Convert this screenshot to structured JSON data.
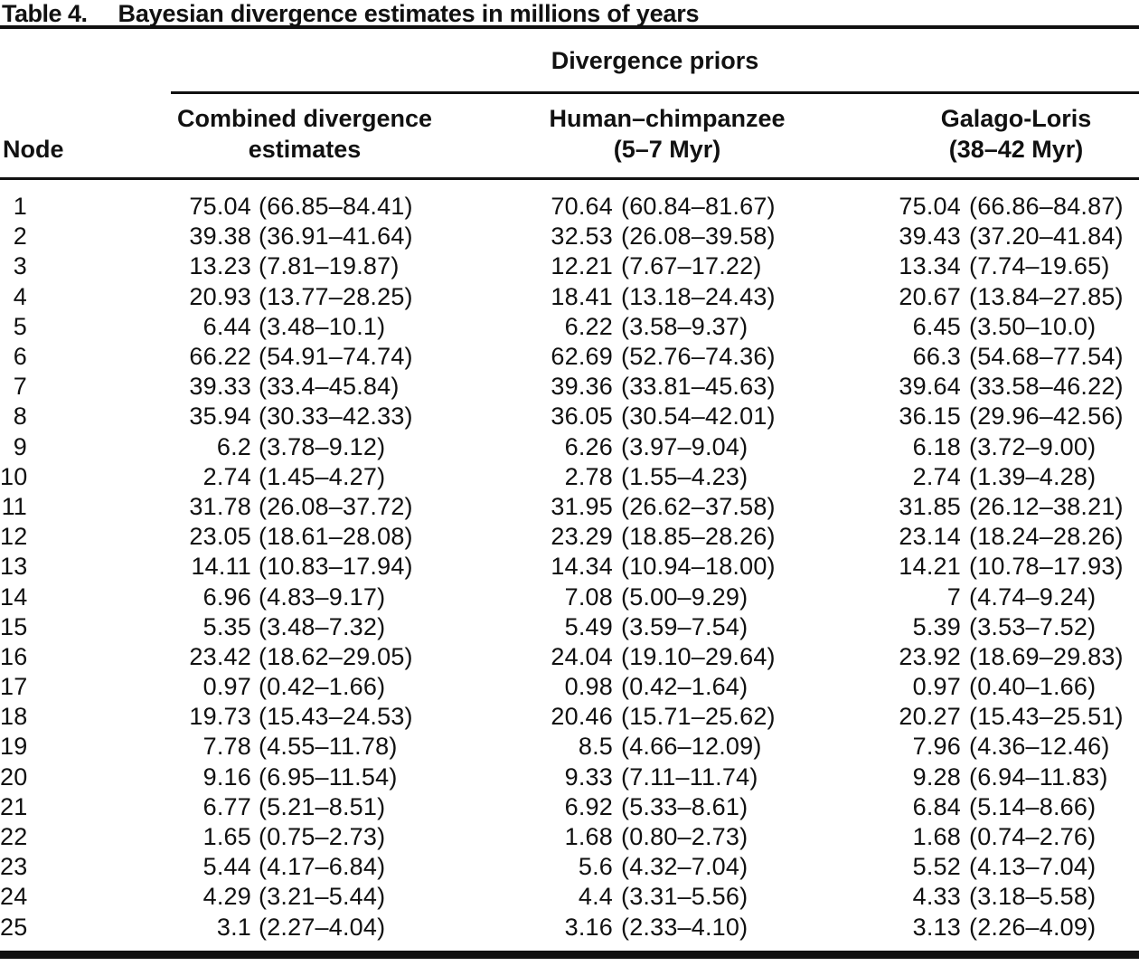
{
  "title": {
    "label": "Table 4.",
    "text": "Bayesian divergence estimates in millions of years"
  },
  "header": {
    "span_label": "Divergence priors",
    "node_label": "Node",
    "columns": [
      {
        "line1": "Combined divergence",
        "line2": "estimates"
      },
      {
        "line1": "Human–chimpanzee",
        "line2": "(5–7 Myr)"
      },
      {
        "line1": "Galago-Loris",
        "line2": "(38–42 Myr)"
      }
    ]
  },
  "colors": {
    "text": "#111111",
    "rule": "#111111",
    "background": "#ffffff"
  },
  "chart_data": {
    "type": "table",
    "title": "Table 4. Bayesian divergence estimates in millions of years",
    "units": "millions of years",
    "column_headers": [
      "Node",
      "Combined divergence estimates",
      "Human–chimpanzee (5–7 Myr)",
      "Galago-Loris (38–42 Myr)"
    ],
    "rows_are": "node, combined estimate, combined 95% CI, human-chimp estimate, human-chimp CI, galago-loris estimate, galago-loris CI"
  },
  "rows": [
    [
      "1",
      "75.04",
      "(66.85–84.41)",
      "70.64",
      "(60.84–81.67)",
      "75.04",
      "(66.86–84.87)"
    ],
    [
      "2",
      "39.38",
      "(36.91–41.64)",
      "32.53",
      "(26.08–39.58)",
      "39.43",
      "(37.20–41.84)"
    ],
    [
      "3",
      "13.23",
      "(7.81–19.87)",
      "12.21",
      "(7.67–17.22)",
      "13.34",
      "(7.74–19.65)"
    ],
    [
      "4",
      "20.93",
      "(13.77–28.25)",
      "18.41",
      "(13.18–24.43)",
      "20.67",
      "(13.84–27.85)"
    ],
    [
      "5",
      "6.44",
      "(3.48–10.1)",
      "6.22",
      "(3.58–9.37)",
      "6.45",
      "(3.50–10.0)"
    ],
    [
      "6",
      "66.22",
      "(54.91–74.74)",
      "62.69",
      "(52.76–74.36)",
      "66.3",
      "(54.68–77.54)"
    ],
    [
      "7",
      "39.33",
      "(33.4–45.84)",
      "39.36",
      "(33.81–45.63)",
      "39.64",
      "(33.58–46.22)"
    ],
    [
      "8",
      "35.94",
      "(30.33–42.33)",
      "36.05",
      "(30.54–42.01)",
      "36.15",
      "(29.96–42.56)"
    ],
    [
      "9",
      "6.2",
      "(3.78–9.12)",
      "6.26",
      "(3.97–9.04)",
      "6.18",
      "(3.72–9.00)"
    ],
    [
      "10",
      "2.74",
      "(1.45–4.27)",
      "2.78",
      "(1.55–4.23)",
      "2.74",
      "(1.39–4.28)"
    ],
    [
      "11",
      "31.78",
      "(26.08–37.72)",
      "31.95",
      "(26.62–37.58)",
      "31.85",
      "(26.12–38.21)"
    ],
    [
      "12",
      "23.05",
      "(18.61–28.08)",
      "23.29",
      "(18.85–28.26)",
      "23.14",
      "(18.24–28.26)"
    ],
    [
      "13",
      "14.11",
      "(10.83–17.94)",
      "14.34",
      "(10.94–18.00)",
      "14.21",
      "(10.78–17.93)"
    ],
    [
      "14",
      "6.96",
      "(4.83–9.17)",
      "7.08",
      "(5.00–9.29)",
      "7",
      "(4.74–9.24)"
    ],
    [
      "15",
      "5.35",
      "(3.48–7.32)",
      "5.49",
      "(3.59–7.54)",
      "5.39",
      "(3.53–7.52)"
    ],
    [
      "16",
      "23.42",
      "(18.62–29.05)",
      "24.04",
      "(19.10–29.64)",
      "23.92",
      "(18.69–29.83)"
    ],
    [
      "17",
      "0.97",
      "(0.42–1.66)",
      "0.98",
      "(0.42–1.64)",
      "0.97",
      "(0.40–1.66)"
    ],
    [
      "18",
      "19.73",
      "(15.43–24.53)",
      "20.46",
      "(15.71–25.62)",
      "20.27",
      "(15.43–25.51)"
    ],
    [
      "19",
      "7.78",
      "(4.55–11.78)",
      "8.5",
      "(4.66–12.09)",
      "7.96",
      "(4.36–12.46)"
    ],
    [
      "20",
      "9.16",
      "(6.95–11.54)",
      "9.33",
      "(7.11–11.74)",
      "9.28",
      "(6.94–11.83)"
    ],
    [
      "21",
      "6.77",
      "(5.21–8.51)",
      "6.92",
      "(5.33–8.61)",
      "6.84",
      "(5.14–8.66)"
    ],
    [
      "22",
      "1.65",
      "(0.75–2.73)",
      "1.68",
      "(0.80–2.73)",
      "1.68",
      "(0.74–2.76)"
    ],
    [
      "23",
      "5.44",
      "(4.17–6.84)",
      "5.6",
      "(4.32–7.04)",
      "5.52",
      "(4.13–7.04)"
    ],
    [
      "24",
      "4.29",
      "(3.21–5.44)",
      "4.4",
      "(3.31–5.56)",
      "4.33",
      "(3.18–5.58)"
    ],
    [
      "25",
      "3.1",
      "(2.27–4.04)",
      "3.16",
      "(2.33–4.10)",
      "3.13",
      "(2.26–4.09)"
    ]
  ]
}
